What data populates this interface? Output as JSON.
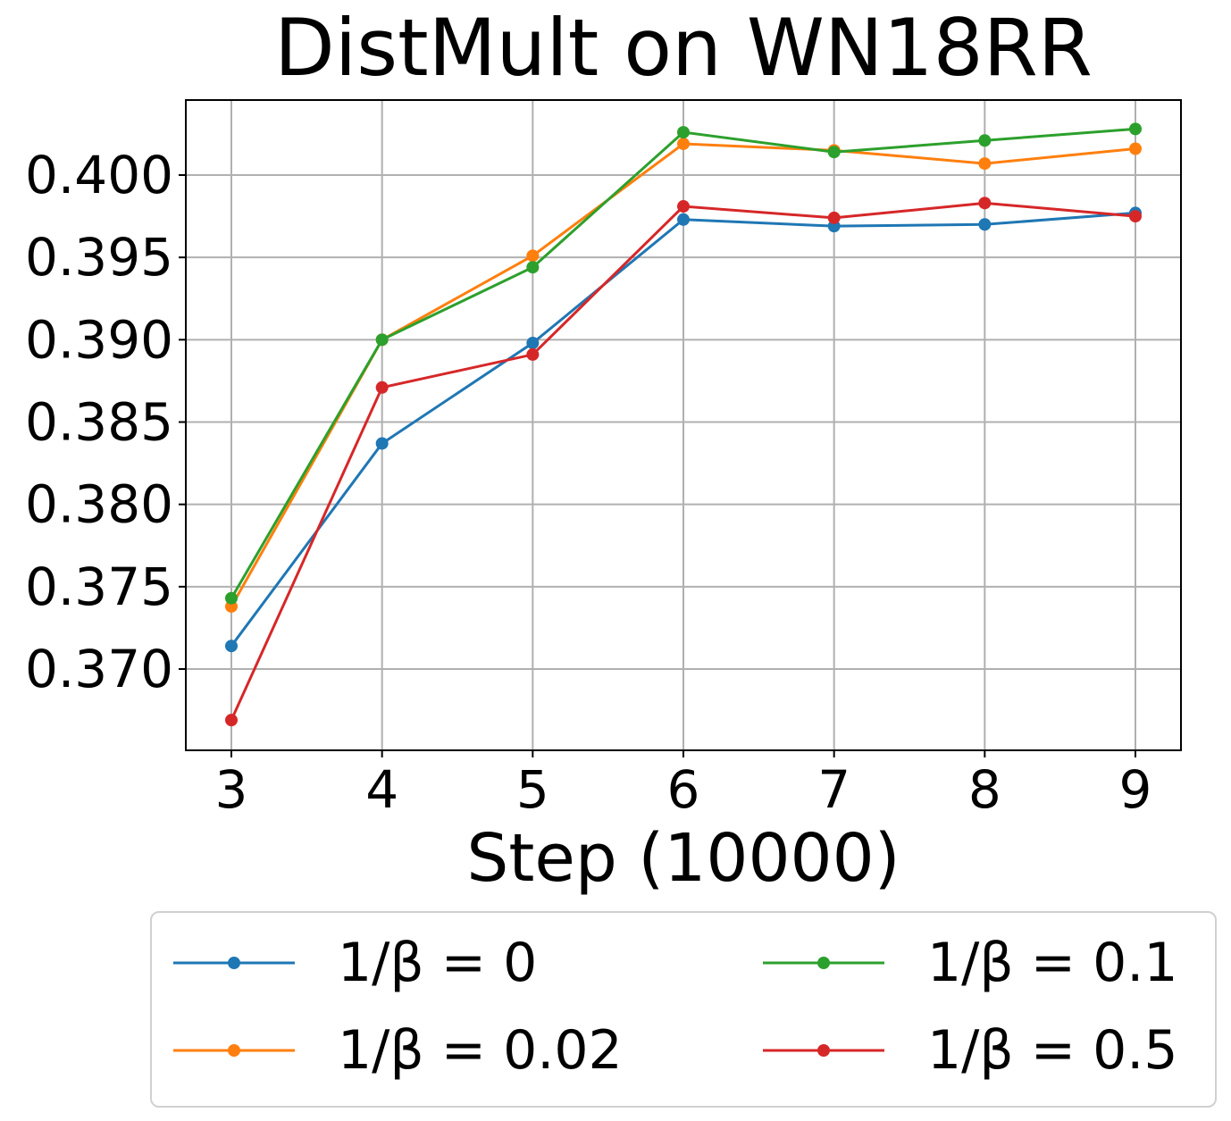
{
  "chart_data": {
    "type": "line",
    "title": "DistMult on WN18RR",
    "xlabel": "Step (10000)",
    "ylabel": "",
    "x": [
      3,
      4,
      5,
      6,
      7,
      8,
      9
    ],
    "xticks": [
      "3",
      "4",
      "5",
      "6",
      "7",
      "8",
      "9"
    ],
    "yticks": [
      "0.370",
      "0.375",
      "0.380",
      "0.385",
      "0.390",
      "0.395",
      "0.400"
    ],
    "ylim": [
      0.3649,
      0.4044
    ],
    "xlim": [
      2.7,
      9.3
    ],
    "grid": true,
    "legend_position": "below",
    "series": [
      {
        "name": "1/β = 0",
        "color": "#1f77b4",
        "values": [
          0.3714,
          0.3837,
          0.3898,
          0.3973,
          0.3969,
          0.397,
          0.3977
        ]
      },
      {
        "name": "1/β = 0.02",
        "color": "#ff7f0e",
        "values": [
          0.3738,
          0.39,
          0.3951,
          0.4019,
          0.4015,
          0.4007,
          0.4016
        ]
      },
      {
        "name": "1/β = 0.1",
        "color": "#2ca02c",
        "values": [
          0.3743,
          0.39,
          0.3944,
          0.4026,
          0.4014,
          0.4021,
          0.4028
        ]
      },
      {
        "name": "1/β = 0.5",
        "color": "#d62728",
        "values": [
          0.3669,
          0.3871,
          0.3891,
          0.3981,
          0.3974,
          0.3983,
          0.3975
        ]
      }
    ]
  },
  "legend": {
    "items": [
      {
        "label": "1/β = 0",
        "color": "#1f77b4"
      },
      {
        "label": "1/β = 0.1",
        "color": "#2ca02c"
      },
      {
        "label": "1/β = 0.02",
        "color": "#ff7f0e"
      },
      {
        "label": "1/β = 0.5",
        "color": "#d62728"
      }
    ]
  }
}
